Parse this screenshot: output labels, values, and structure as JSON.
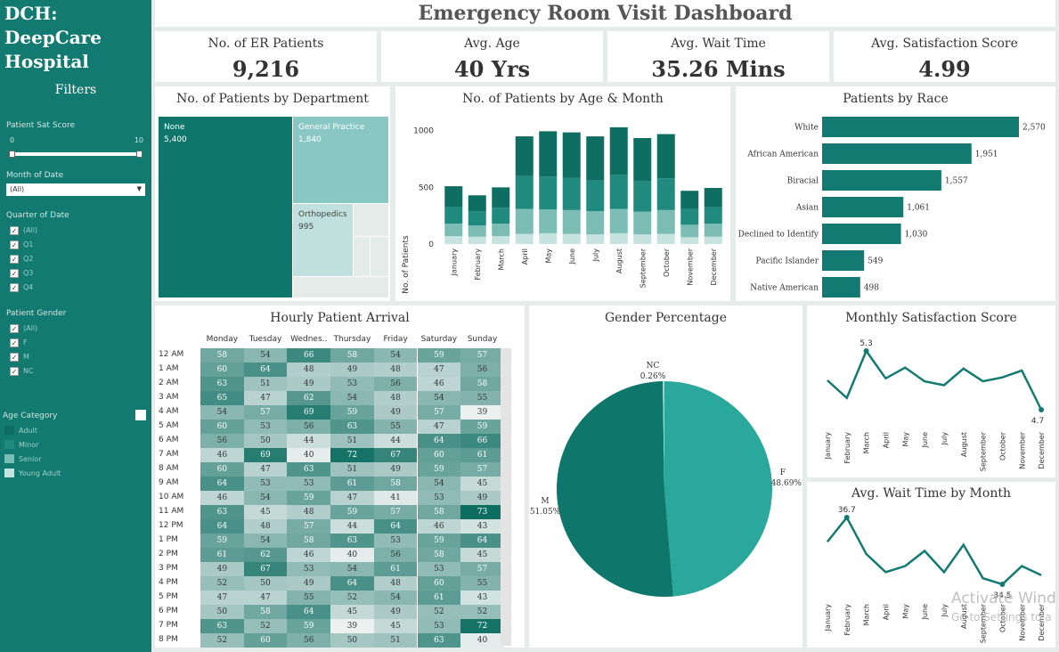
{
  "sidebar": {
    "brand_line1": "DCH:",
    "brand_line2": "DeepCare",
    "brand_line3": "Hospital",
    "filters_title": "Filters",
    "sat_label": "Patient Sat Score",
    "sat_min": "0",
    "sat_max": "10",
    "month_label": "Month of Date",
    "month_value": "(All)",
    "quarter_label": "Quarter of Date",
    "quarters": [
      "(All)",
      "Q1",
      "Q2",
      "Q3",
      "Q4"
    ],
    "gender_label": "Patient Gender",
    "genders": [
      "(All)",
      "F",
      "M",
      "NC"
    ],
    "age_label": "Age Category",
    "age_categories": [
      {
        "label": "Adult",
        "color": "#0e6e62"
      },
      {
        "label": "Minor",
        "color": "#1f8a7d"
      },
      {
        "label": "Senior",
        "color": "#7bbdb5"
      },
      {
        "label": "Young Adult",
        "color": "#c7e3df"
      }
    ]
  },
  "header": {
    "title": "Emergency Room Visit Dashboard"
  },
  "kpis": [
    {
      "label": "No. of ER Patients",
      "value": "9,216"
    },
    {
      "label": "Avg. Age",
      "value": "40 Yrs"
    },
    {
      "label": "Avg. Wait Time",
      "value": "35.26 Mins"
    },
    {
      "label": "Avg. Satisfaction Score",
      "value": "4.99"
    }
  ],
  "department": {
    "title": "No. of Patients by Department",
    "none_name": "None",
    "none_value": "5,400",
    "gp_name": "General Practice",
    "gp_value": "1,840",
    "ortho_name": "Orthopedics",
    "ortho_value": "995"
  },
  "age_month": {
    "title": "No. of Patients by Age & Month",
    "ylabel": "No. of Patients",
    "months": [
      "January",
      "February",
      "March",
      "April",
      "May",
      "June",
      "July",
      "August",
      "September",
      "October",
      "November",
      "December"
    ],
    "yticks": [
      0,
      500,
      1000
    ],
    "series": [
      {
        "name": "Young Adult",
        "color": "#c7e3df",
        "values": [
          70,
          65,
          70,
          90,
          95,
          90,
          85,
          95,
          85,
          90,
          60,
          65
        ]
      },
      {
        "name": "Senior",
        "color": "#7bbdb5",
        "values": [
          110,
          100,
          110,
          220,
          210,
          210,
          205,
          215,
          200,
          210,
          110,
          115
        ]
      },
      {
        "name": "Minor",
        "color": "#1f8a7d",
        "values": [
          150,
          125,
          140,
          290,
          290,
          285,
          270,
          300,
          270,
          280,
          140,
          145
        ]
      },
      {
        "name": "Adult",
        "color": "#0e6e62",
        "values": [
          180,
          140,
          180,
          350,
          400,
          400,
          390,
          420,
          380,
          390,
          160,
          170
        ]
      }
    ]
  },
  "race": {
    "title": "Patients by Race",
    "labels": [
      "White",
      "African American",
      "Biracial",
      "Asian",
      "Declined to Identify",
      "Pacific Islander",
      "Native American"
    ],
    "values": [
      2570,
      1951,
      1557,
      1061,
      1030,
      549,
      498
    ],
    "value_labels": [
      "2,570",
      "1,951",
      "1,557",
      "1,061",
      "1,030",
      "549",
      "498"
    ]
  },
  "hourly": {
    "title": "Hourly Patient Arrival",
    "days": [
      "Monday",
      "Tuesday",
      "Wednes..",
      "Thursday",
      "Friday",
      "Saturday",
      "Sunday"
    ],
    "hours": [
      "12 AM",
      "1 AM",
      "2 AM",
      "3 AM",
      "4 AM",
      "5 AM",
      "6 AM",
      "7 AM",
      "8 AM",
      "9 AM",
      "10 AM",
      "11 AM",
      "12 PM",
      "1 PM",
      "2 PM",
      "3 PM",
      "4 PM",
      "5 PM",
      "6 PM",
      "7 PM",
      "8 PM"
    ],
    "values": [
      [
        58,
        54,
        66,
        58,
        54,
        59,
        57
      ],
      [
        60,
        64,
        48,
        49,
        48,
        47,
        56
      ],
      [
        63,
        51,
        49,
        53,
        56,
        46,
        58
      ],
      [
        65,
        47,
        62,
        54,
        48,
        54,
        55
      ],
      [
        54,
        57,
        69,
        59,
        49,
        57,
        39
      ],
      [
        60,
        53,
        56,
        63,
        55,
        47,
        59
      ],
      [
        56,
        50,
        44,
        51,
        44,
        64,
        66
      ],
      [
        46,
        69,
        40,
        72,
        67,
        60,
        61
      ],
      [
        60,
        47,
        63,
        51,
        49,
        59,
        57
      ],
      [
        64,
        53,
        53,
        61,
        58,
        54,
        45
      ],
      [
        46,
        54,
        59,
        47,
        41,
        53,
        49
      ],
      [
        63,
        45,
        48,
        59,
        57,
        58,
        73
      ],
      [
        64,
        48,
        57,
        44,
        64,
        46,
        43
      ],
      [
        59,
        54,
        58,
        63,
        53,
        59,
        64
      ],
      [
        61,
        62,
        46,
        40,
        56,
        58,
        45
      ],
      [
        49,
        67,
        53,
        54,
        61,
        53,
        57
      ],
      [
        52,
        50,
        49,
        64,
        48,
        60,
        55
      ],
      [
        47,
        47,
        55,
        52,
        54,
        61,
        43
      ],
      [
        50,
        58,
        64,
        45,
        49,
        52,
        52
      ],
      [
        63,
        52,
        59,
        39,
        45,
        53,
        72
      ],
      [
        52,
        60,
        56,
        50,
        51,
        63,
        40
      ]
    ]
  },
  "gender": {
    "title": "Gender Percentage",
    "slices": [
      {
        "name": "F",
        "pct": 48.69,
        "label": "48.69%",
        "color": "#2aa89c"
      },
      {
        "name": "M",
        "pct": 51.05,
        "label": "51.05%",
        "color": "#0e766b"
      },
      {
        "name": "NC",
        "pct": 0.26,
        "label": "0.26%",
        "color": "#9fd3cc"
      }
    ]
  },
  "satisfaction": {
    "title": "Monthly Satisfaction Score",
    "months": [
      "January",
      "February",
      "March",
      "April",
      "May",
      "June",
      "July",
      "August",
      "September",
      "October",
      "November",
      "December"
    ],
    "values": [
      5.0,
      4.82,
      5.3,
      5.02,
      5.13,
      4.99,
      4.95,
      5.12,
      4.99,
      5.03,
      5.1,
      4.7
    ],
    "max_label": "5.3",
    "min_label": "4.7"
  },
  "wait": {
    "title": "Avg. Wait Time by Month",
    "months": [
      "January",
      "February",
      "March",
      "April",
      "May",
      "June",
      "July",
      "August",
      "September",
      "October",
      "November",
      "December"
    ],
    "values": [
      35.9,
      36.7,
      35.5,
      34.9,
      35.1,
      35.6,
      34.9,
      35.8,
      34.7,
      34.5,
      35.1,
      34.8
    ],
    "max_label": "36.7",
    "min_label": "34.5"
  },
  "watermark": {
    "line1": "Activate Wind",
    "line2": "Go to Settings to a"
  }
}
